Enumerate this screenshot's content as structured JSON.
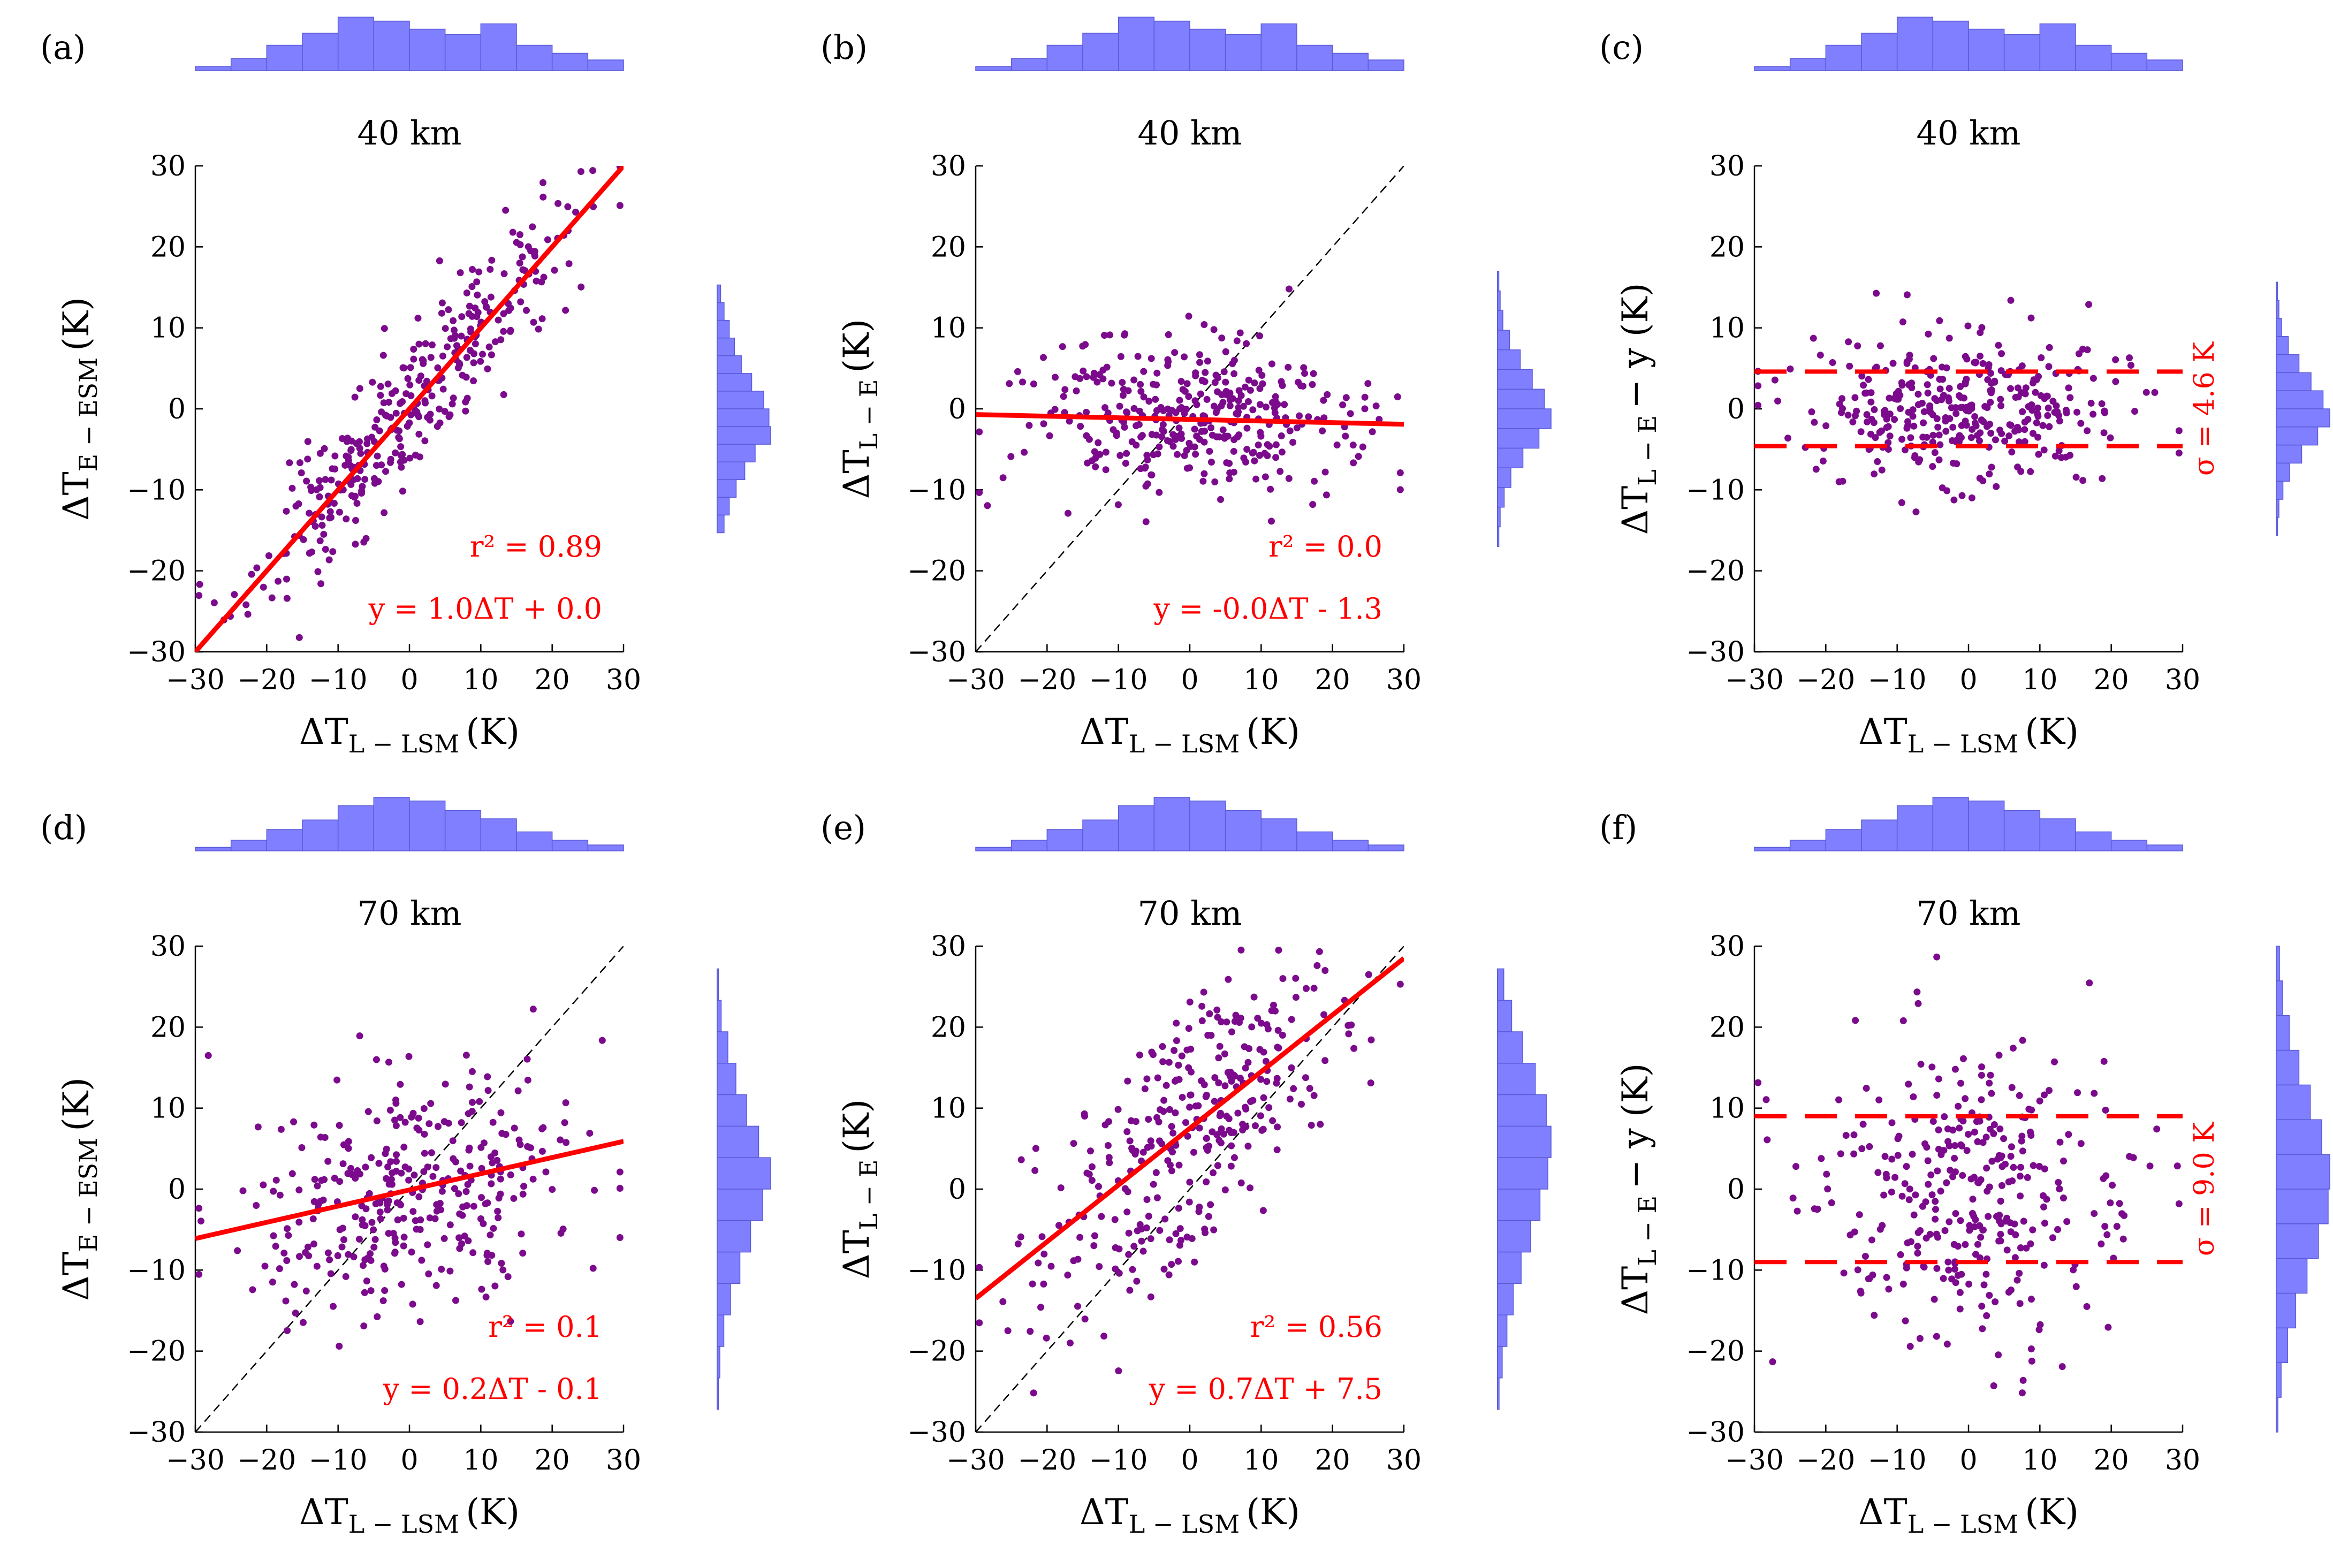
{
  "figure": {
    "marker_color": "#7b0a8c",
    "fit_color": "#ff0000",
    "hist_color": "#7f7fff",
    "hist_edge_color": "#5a5ad8"
  },
  "chart_data": [
    {
      "type": "scatter",
      "panel": "(a)",
      "title": "40 km",
      "xlabel": {
        "main": "ΔT",
        "sub": "L − LSM",
        "unit": "(K)"
      },
      "ylabel": {
        "main": "ΔT",
        "sub": "E − ESM",
        "unit": "(K)"
      },
      "xlim": [
        -30,
        30
      ],
      "ylim": [
        -30,
        30
      ],
      "xticks": [
        -30,
        -20,
        -10,
        0,
        10,
        20,
        30
      ],
      "yticks": [
        -30,
        -20,
        -10,
        0,
        10,
        20,
        30
      ],
      "tick_labels": [
        "−30",
        "−20",
        "−10",
        "0",
        "10",
        "20",
        "30"
      ],
      "point_model": {
        "slope": 1.0,
        "intercept": 0.0,
        "spread": 4.5,
        "n": 350,
        "seed": 11
      },
      "fit": {
        "slope": 1.0,
        "intercept": 0.0
      },
      "diagonal": false,
      "r2_label": "r² = 0.89",
      "eq_label": "y = 1.0ΔT + 0.0",
      "hist_top": [
        3,
        9,
        19,
        28,
        40,
        37,
        31,
        27,
        35,
        19,
        13,
        8
      ],
      "hist_right": [
        2,
        4,
        7,
        10,
        14,
        20,
        27,
        30,
        31,
        22,
        16,
        11,
        7,
        4
      ]
    },
    {
      "type": "scatter",
      "panel": "(b)",
      "title": "40 km",
      "xlabel": {
        "main": "ΔT",
        "sub": "L − LSM",
        "unit": "(K)"
      },
      "ylabel": {
        "main": "ΔT",
        "sub": "L − E",
        "unit": "(K)"
      },
      "xlim": [
        -30,
        30
      ],
      "ylim": [
        -30,
        30
      ],
      "xticks": [
        -30,
        -20,
        -10,
        0,
        10,
        20,
        30
      ],
      "yticks": [
        -30,
        -20,
        -10,
        0,
        10,
        20,
        30
      ],
      "tick_labels": [
        "−30",
        "−20",
        "−10",
        "0",
        "10",
        "20",
        "30"
      ],
      "point_model": {
        "slope": -0.02,
        "intercept": -1.3,
        "spread": 5.0,
        "n": 350,
        "seed": 23
      },
      "fit": {
        "slope": -0.02,
        "intercept": -1.3
      },
      "diagonal": true,
      "r2_label": "r² = 0.0",
      "eq_label": "y = -0.0ΔT - 1.3",
      "hist_top": [
        3,
        9,
        19,
        28,
        40,
        37,
        31,
        27,
        35,
        19,
        13,
        8
      ],
      "hist_right": [
        1,
        2,
        4,
        9,
        17,
        26,
        35,
        40,
        31,
        19,
        10,
        5,
        2,
        1
      ]
    },
    {
      "type": "scatter",
      "panel": "(c)",
      "title": "40 km",
      "xlabel": {
        "main": "ΔT",
        "sub": "L − LSM",
        "unit": "(K)"
      },
      "ylabel": {
        "main": "ΔT",
        "sub": "L − E",
        "unit": "− y (K)"
      },
      "xlim": [
        -30,
        30
      ],
      "ylim": [
        -30,
        30
      ],
      "xticks": [
        -30,
        -20,
        -10,
        0,
        10,
        20,
        30
      ],
      "yticks": [
        -30,
        -20,
        -10,
        0,
        10,
        20,
        30
      ],
      "tick_labels": [
        "−30",
        "−20",
        "−10",
        "0",
        "10",
        "20",
        "30"
      ],
      "point_model": {
        "slope": 0.0,
        "intercept": 0.0,
        "spread": 4.6,
        "n": 350,
        "seed": 37
      },
      "sigma": 4.6,
      "sigma_label": "σ = 4.6 K",
      "diagonal": false,
      "hist_top": [
        3,
        9,
        19,
        28,
        40,
        37,
        31,
        27,
        35,
        19,
        13,
        8
      ],
      "hist_right": [
        1,
        2,
        4,
        9,
        17,
        26,
        35,
        40,
        31,
        19,
        10,
        5,
        2,
        1
      ]
    },
    {
      "type": "scatter",
      "panel": "(d)",
      "title": "70 km",
      "xlabel": {
        "main": "ΔT",
        "sub": "L − LSM",
        "unit": "(K)"
      },
      "ylabel": {
        "main": "ΔT",
        "sub": "E − ESM",
        "unit": "(K)"
      },
      "xlim": [
        -30,
        30
      ],
      "ylim": [
        -30,
        30
      ],
      "xticks": [
        -30,
        -20,
        -10,
        0,
        10,
        20,
        30
      ],
      "yticks": [
        -30,
        -20,
        -10,
        0,
        10,
        20,
        30
      ],
      "tick_labels": [
        "−30",
        "−20",
        "−10",
        "0",
        "10",
        "20",
        "30"
      ],
      "point_model": {
        "slope": 0.2,
        "intercept": -0.1,
        "spread": 8.0,
        "n": 330,
        "seed": 41
      },
      "fit": {
        "slope": 0.2,
        "intercept": -0.1
      },
      "diagonal": true,
      "r2_label": "r² = 0.1",
      "eq_label": "y = 0.2ΔT - 0.1",
      "hist_top": [
        3,
        9,
        18,
        26,
        38,
        45,
        42,
        34,
        27,
        16,
        9,
        5
      ],
      "hist_right": [
        1,
        3,
        8,
        14,
        22,
        31,
        40,
        34,
        25,
        17,
        10,
        5,
        2,
        1
      ]
    },
    {
      "type": "scatter",
      "panel": "(e)",
      "title": "70 km",
      "xlabel": {
        "main": "ΔT",
        "sub": "L − LSM",
        "unit": "(K)"
      },
      "ylabel": {
        "main": "ΔT",
        "sub": "L − E",
        "unit": "(K)"
      },
      "xlim": [
        -30,
        30
      ],
      "ylim": [
        -30,
        30
      ],
      "xticks": [
        -30,
        -20,
        -10,
        0,
        10,
        20,
        30
      ],
      "yticks": [
        -30,
        -20,
        -10,
        0,
        10,
        20,
        30
      ],
      "tick_labels": [
        "−30",
        "−20",
        "−10",
        "0",
        "10",
        "20",
        "30"
      ],
      "point_model": {
        "slope": 0.7,
        "intercept": 7.5,
        "spread": 8.0,
        "n": 330,
        "seed": 53
      },
      "fit": {
        "slope": 0.7,
        "intercept": 7.5
      },
      "diagonal": true,
      "r2_label": "r² = 0.56",
      "eq_label": "y = 0.7ΔT + 7.5",
      "hist_top": [
        3,
        9,
        18,
        26,
        38,
        45,
        42,
        34,
        27,
        16,
        9,
        5
      ],
      "hist_right": [
        4,
        9,
        16,
        24,
        31,
        34,
        32,
        27,
        21,
        15,
        10,
        6,
        3,
        1
      ]
    },
    {
      "type": "scatter",
      "panel": "(f)",
      "title": "70 km",
      "xlabel": {
        "main": "ΔT",
        "sub": "L − LSM",
        "unit": "(K)"
      },
      "ylabel": {
        "main": "ΔT",
        "sub": "L − E",
        "unit": "− y (K)"
      },
      "xlim": [
        -30,
        30
      ],
      "ylim": [
        -30,
        30
      ],
      "xticks": [
        -30,
        -20,
        -10,
        0,
        10,
        20,
        30
      ],
      "yticks": [
        -30,
        -20,
        -10,
        0,
        10,
        20,
        30
      ],
      "tick_labels": [
        "−30",
        "−20",
        "−10",
        "0",
        "10",
        "20",
        "30"
      ],
      "point_model": {
        "slope": 0.0,
        "intercept": 0.0,
        "spread": 9.0,
        "n": 330,
        "seed": 67
      },
      "sigma": 9.0,
      "sigma_label": "σ = 9.0 K",
      "diagonal": false,
      "hist_top": [
        3,
        9,
        18,
        26,
        38,
        45,
        42,
        34,
        27,
        16,
        9,
        5
      ],
      "hist_right": [
        2,
        4,
        8,
        14,
        21,
        28,
        33,
        32,
        26,
        19,
        12,
        7,
        3,
        1
      ]
    }
  ]
}
